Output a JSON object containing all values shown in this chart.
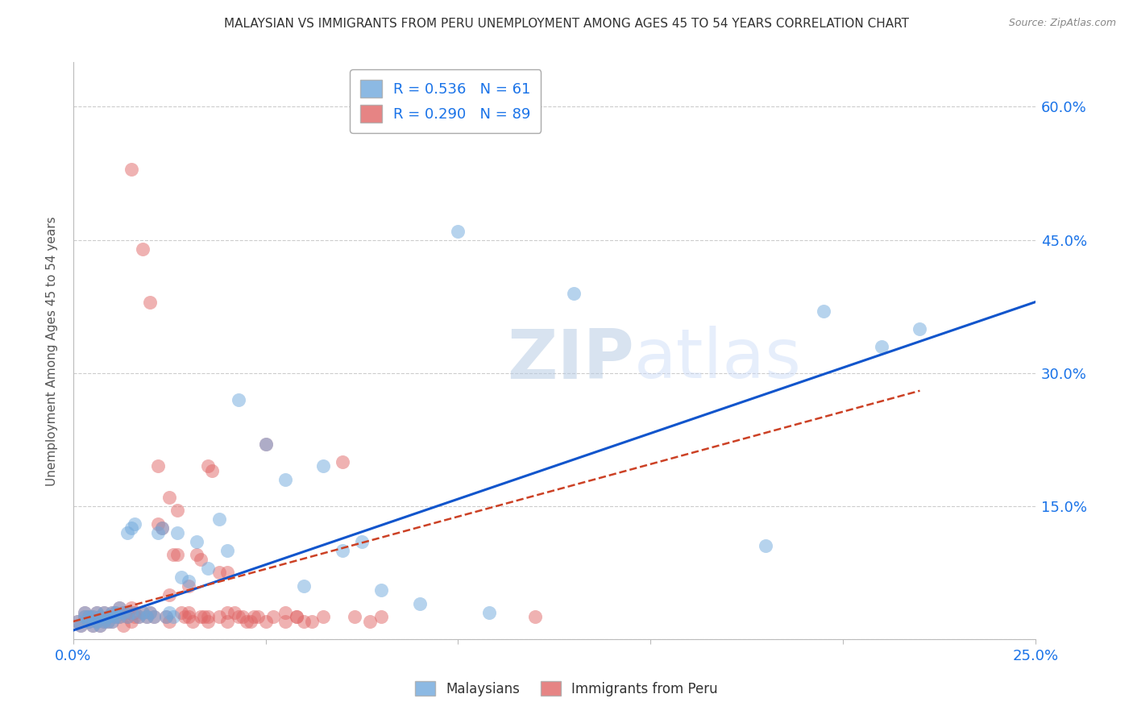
{
  "title": "MALAYSIAN VS IMMIGRANTS FROM PERU UNEMPLOYMENT AMONG AGES 45 TO 54 YEARS CORRELATION CHART",
  "source": "Source: ZipAtlas.com",
  "ylabel": "Unemployment Among Ages 45 to 54 years",
  "xlim": [
    0.0,
    0.25
  ],
  "ylim": [
    0.0,
    0.65
  ],
  "x_tick_positions": [
    0.0,
    0.05,
    0.1,
    0.15,
    0.2,
    0.25
  ],
  "x_tick_labels": [
    "0.0%",
    "",
    "",
    "",
    "",
    "25.0%"
  ],
  "y_tick_positions": [
    0.0,
    0.15,
    0.3,
    0.45,
    0.6
  ],
  "y_tick_labels_right": [
    "",
    "15.0%",
    "30.0%",
    "45.0%",
    "60.0%"
  ],
  "malaysian_R": 0.536,
  "malaysian_N": 61,
  "peru_R": 0.29,
  "peru_N": 89,
  "malaysian_color": "#6fa8dc",
  "peru_color": "#e06666",
  "malaysian_line_color": "#1155cc",
  "peru_line_color": "#cc4125",
  "watermark_zip": "ZIP",
  "watermark_atlas": "atlas",
  "malaysian_x": [
    0.001,
    0.002,
    0.003,
    0.003,
    0.004,
    0.004,
    0.005,
    0.005,
    0.006,
    0.006,
    0.007,
    0.007,
    0.008,
    0.008,
    0.009,
    0.009,
    0.01,
    0.01,
    0.011,
    0.011,
    0.012,
    0.012,
    0.013,
    0.014,
    0.014,
    0.015,
    0.015,
    0.016,
    0.017,
    0.018,
    0.019,
    0.02,
    0.021,
    0.022,
    0.023,
    0.024,
    0.025,
    0.026,
    0.027,
    0.028,
    0.03,
    0.032,
    0.035,
    0.038,
    0.04,
    0.043,
    0.05,
    0.055,
    0.06,
    0.065,
    0.07,
    0.075,
    0.08,
    0.09,
    0.1,
    0.108,
    0.13,
    0.18,
    0.195,
    0.21,
    0.22
  ],
  "malaysian_y": [
    0.02,
    0.015,
    0.025,
    0.03,
    0.02,
    0.025,
    0.015,
    0.025,
    0.02,
    0.03,
    0.015,
    0.025,
    0.02,
    0.03,
    0.02,
    0.025,
    0.02,
    0.03,
    0.025,
    0.03,
    0.025,
    0.035,
    0.03,
    0.025,
    0.12,
    0.03,
    0.125,
    0.13,
    0.025,
    0.03,
    0.025,
    0.03,
    0.025,
    0.12,
    0.125,
    0.025,
    0.03,
    0.025,
    0.12,
    0.07,
    0.065,
    0.11,
    0.08,
    0.135,
    0.1,
    0.27,
    0.22,
    0.18,
    0.06,
    0.195,
    0.1,
    0.11,
    0.055,
    0.04,
    0.46,
    0.03,
    0.39,
    0.105,
    0.37,
    0.33,
    0.35
  ],
  "peru_x": [
    0.001,
    0.002,
    0.003,
    0.003,
    0.004,
    0.004,
    0.005,
    0.005,
    0.006,
    0.006,
    0.007,
    0.007,
    0.008,
    0.008,
    0.009,
    0.009,
    0.01,
    0.01,
    0.011,
    0.011,
    0.012,
    0.012,
    0.013,
    0.013,
    0.014,
    0.014,
    0.015,
    0.015,
    0.016,
    0.016,
    0.017,
    0.018,
    0.019,
    0.02,
    0.021,
    0.022,
    0.023,
    0.024,
    0.025,
    0.026,
    0.027,
    0.028,
    0.029,
    0.03,
    0.031,
    0.032,
    0.033,
    0.034,
    0.035,
    0.036,
    0.038,
    0.04,
    0.042,
    0.044,
    0.046,
    0.048,
    0.05,
    0.055,
    0.058,
    0.062,
    0.065,
    0.07,
    0.073,
    0.077,
    0.08,
    0.015,
    0.018,
    0.02,
    0.022,
    0.025,
    0.027,
    0.03,
    0.033,
    0.035,
    0.038,
    0.04,
    0.043,
    0.045,
    0.047,
    0.05,
    0.052,
    0.055,
    0.058,
    0.06,
    0.12,
    0.025,
    0.03,
    0.035,
    0.04
  ],
  "peru_y": [
    0.02,
    0.015,
    0.025,
    0.03,
    0.02,
    0.025,
    0.015,
    0.025,
    0.02,
    0.03,
    0.015,
    0.025,
    0.02,
    0.03,
    0.02,
    0.025,
    0.02,
    0.03,
    0.025,
    0.03,
    0.025,
    0.035,
    0.03,
    0.015,
    0.025,
    0.03,
    0.02,
    0.035,
    0.025,
    0.03,
    0.025,
    0.03,
    0.025,
    0.03,
    0.025,
    0.13,
    0.125,
    0.025,
    0.02,
    0.095,
    0.095,
    0.03,
    0.025,
    0.025,
    0.02,
    0.095,
    0.09,
    0.025,
    0.195,
    0.19,
    0.075,
    0.075,
    0.03,
    0.025,
    0.02,
    0.025,
    0.22,
    0.03,
    0.025,
    0.02,
    0.025,
    0.2,
    0.025,
    0.02,
    0.025,
    0.53,
    0.44,
    0.38,
    0.195,
    0.16,
    0.145,
    0.03,
    0.025,
    0.02,
    0.025,
    0.02,
    0.025,
    0.02,
    0.025,
    0.02,
    0.025,
    0.02,
    0.025,
    0.02,
    0.025,
    0.05,
    0.06,
    0.025,
    0.03
  ],
  "malaysian_line_x0": 0.0,
  "malaysian_line_y0": 0.01,
  "malaysian_line_x1": 0.25,
  "malaysian_line_y1": 0.38,
  "peru_line_x0": 0.0,
  "peru_line_y0": 0.02,
  "peru_line_x1": 0.22,
  "peru_line_y1": 0.28
}
